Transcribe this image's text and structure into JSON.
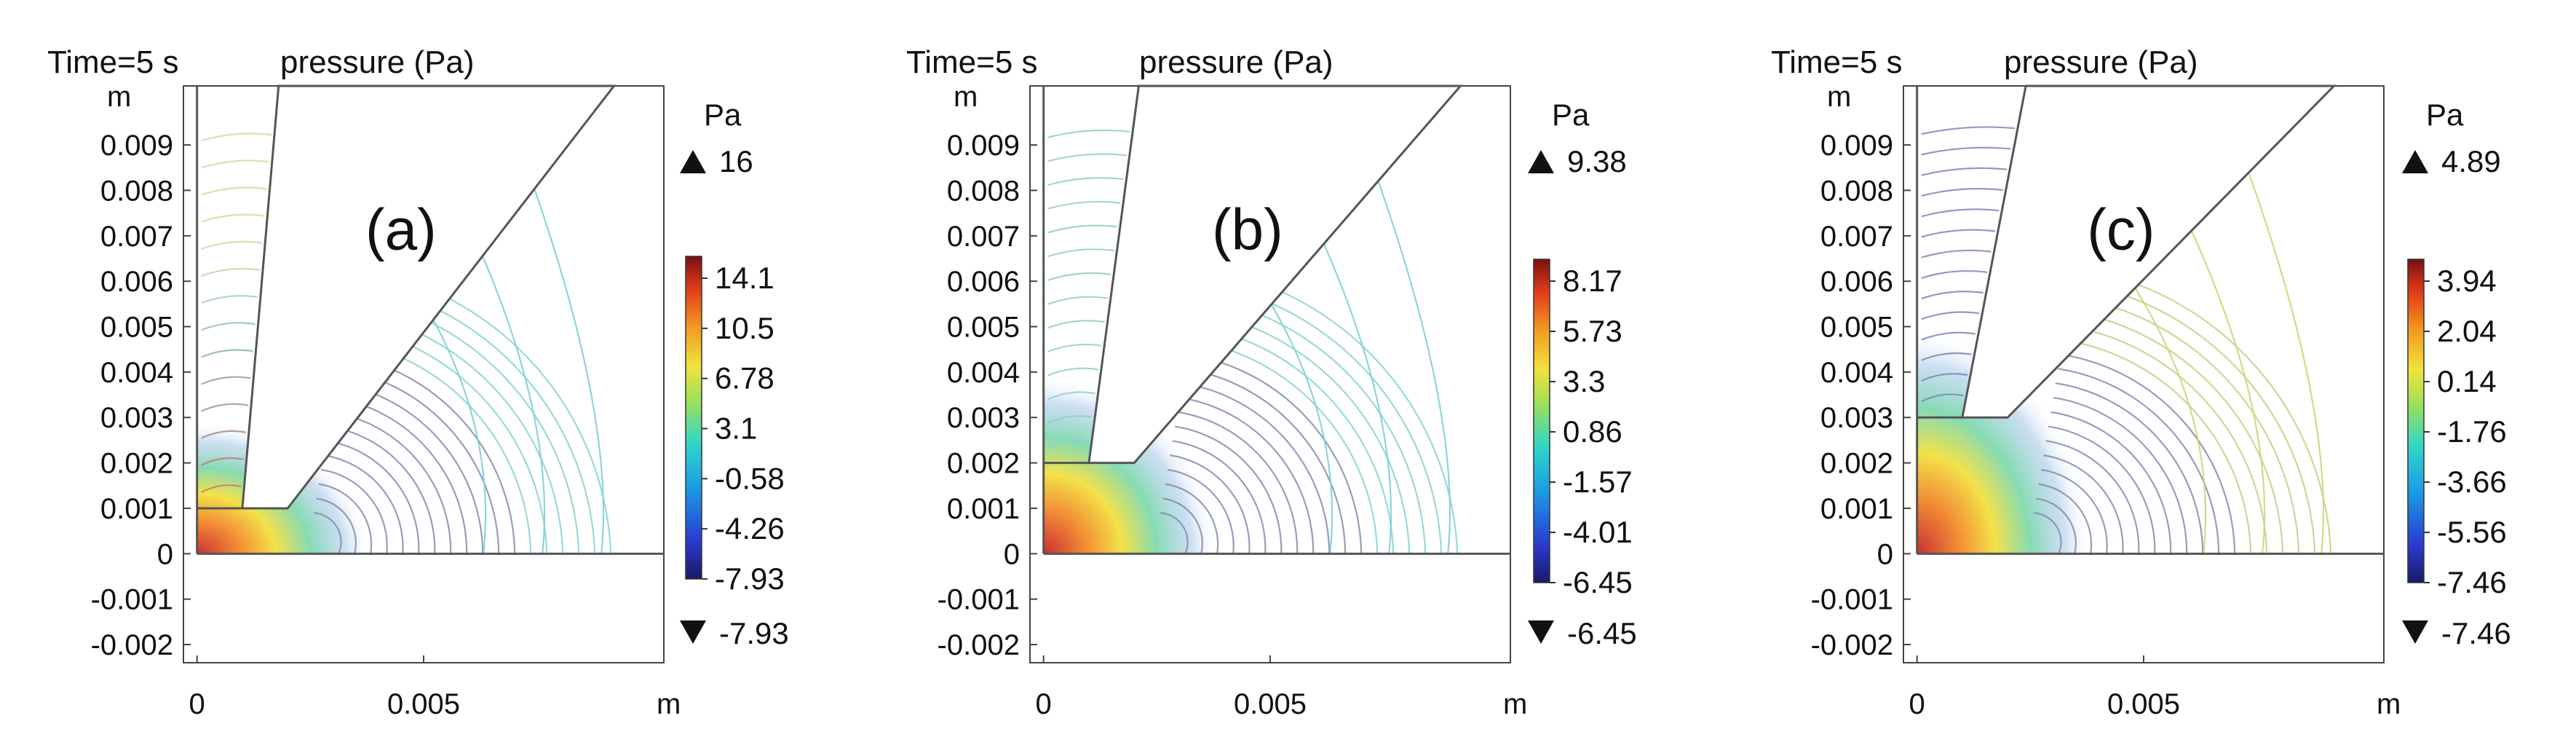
{
  "chart_data": [
    {
      "type": "contour",
      "title": "Time=5 s",
      "subtitle": "pressure (Pa)",
      "panel_label": "(a)",
      "x_unit": "m",
      "y_unit": "m",
      "xlim": [
        -0.0003,
        0.0103
      ],
      "ylim": [
        -0.0024,
        0.0103
      ],
      "xticks": [
        0,
        0.005
      ],
      "xtick_labels": [
        "0",
        "0.005"
      ],
      "yticks": [
        0.009,
        0.008,
        0.007,
        0.006,
        0.005,
        0.004,
        0.003,
        0.002,
        0.001,
        0,
        -0.001,
        -0.002
      ],
      "ytick_labels": [
        "0.009",
        "0.008",
        "0.007",
        "0.006",
        "0.005",
        "0.004",
        "0.003",
        "0.002",
        "0.001",
        "0",
        "-0.001",
        "-0.002"
      ],
      "colorbar": {
        "unit": "Pa",
        "max_label": "16",
        "min_label": "-7.93",
        "ticks": [
          "14.1",
          "10.5",
          "6.78",
          "3.1",
          "-0.58",
          "-4.26",
          "-7.93"
        ],
        "colormap": "rainbow"
      },
      "geometry": {
        "step_height": 0.001,
        "outer_top": 0.0103
      }
    },
    {
      "type": "contour",
      "title": "Time=5 s",
      "subtitle": "pressure (Pa)",
      "panel_label": "(b)",
      "x_unit": "m",
      "y_unit": "m",
      "xlim": [
        -0.0003,
        0.0103
      ],
      "ylim": [
        -0.0024,
        0.0103
      ],
      "xticks": [
        0,
        0.005
      ],
      "xtick_labels": [
        "0",
        "0.005"
      ],
      "yticks": [
        0.009,
        0.008,
        0.007,
        0.006,
        0.005,
        0.004,
        0.003,
        0.002,
        0.001,
        0,
        -0.001,
        -0.002
      ],
      "ytick_labels": [
        "0.009",
        "0.008",
        "0.007",
        "0.006",
        "0.005",
        "0.004",
        "0.003",
        "0.002",
        "0.001",
        "0",
        "-0.001",
        "-0.002"
      ],
      "colorbar": {
        "unit": "Pa",
        "max_label": "9.38",
        "min_label": "-6.45",
        "ticks": [
          "8.17",
          "5.73",
          "3.3",
          "0.86",
          "-1.57",
          "-4.01",
          "-6.45"
        ],
        "colormap": "rainbow"
      },
      "geometry": {
        "step_height": 0.002,
        "outer_top": 0.0103
      }
    },
    {
      "type": "contour",
      "title": "Time=5 s",
      "subtitle": "pressure (Pa)",
      "panel_label": "(c)",
      "x_unit": "m",
      "y_unit": "m",
      "xlim": [
        -0.0003,
        0.0103
      ],
      "ylim": [
        -0.0024,
        0.0103
      ],
      "xticks": [
        0,
        0.005
      ],
      "xtick_labels": [
        "0",
        "0.005"
      ],
      "yticks": [
        0.009,
        0.008,
        0.007,
        0.006,
        0.005,
        0.004,
        0.003,
        0.002,
        0.001,
        0,
        -0.001,
        -0.002
      ],
      "ytick_labels": [
        "0.009",
        "0.008",
        "0.007",
        "0.006",
        "0.005",
        "0.004",
        "0.003",
        "0.002",
        "0.001",
        "0",
        "-0.001",
        "-0.002"
      ],
      "colorbar": {
        "unit": "Pa",
        "max_label": "4.89",
        "min_label": "-7.46",
        "ticks": [
          "3.94",
          "2.04",
          "0.14",
          "-1.76",
          "-3.66",
          "-5.56",
          "-7.46"
        ],
        "colormap": "rainbow"
      },
      "geometry": {
        "step_height": 0.003,
        "outer_top": 0.0103
      }
    }
  ]
}
